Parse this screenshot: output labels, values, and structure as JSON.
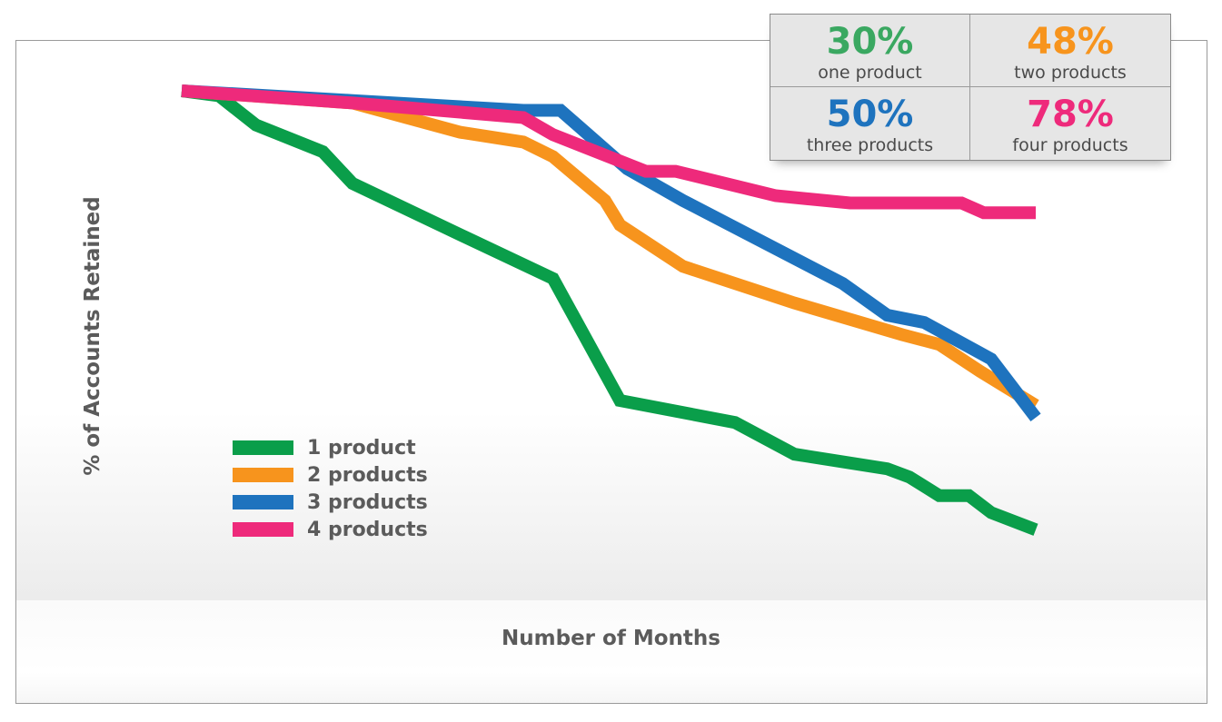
{
  "chart_data": {
    "type": "line",
    "title": "",
    "xlabel": "Number of Months",
    "ylabel": "% of Accounts Retained",
    "grid": false,
    "legend_position": "bottom-left",
    "xlim": [
      0,
      23
    ],
    "ylim": [
      0,
      100
    ],
    "series": [
      {
        "name": "1 product",
        "color": "#0a9e4a",
        "x": [
          0,
          1,
          2,
          3.8,
          4.6,
          7.5,
          10,
          11.8,
          14.9,
          16.5,
          19,
          19.6,
          20.4,
          21.2,
          21.8,
          23
        ],
        "y": [
          100,
          99,
          93,
          87.5,
          81,
          70.5,
          61.5,
          36.5,
          32,
          25.5,
          22.5,
          20.8,
          17,
          17,
          13.5,
          10
        ]
      },
      {
        "name": "2 products",
        "color": "#f7941d",
        "x": [
          0,
          4.6,
          7.5,
          9.2,
          10,
          11.4,
          11.8,
          13.5,
          16.5,
          19.4,
          20.4,
          21.5,
          23
        ],
        "y": [
          100,
          97.5,
          91.5,
          89.5,
          86.5,
          77.5,
          72.5,
          64,
          56.5,
          50,
          48,
          42.5,
          35.5
        ]
      },
      {
        "name": "3 products",
        "color": "#1e73be",
        "x": [
          0,
          4.6,
          9.2,
          10.2,
          12,
          13.5,
          17.8,
          19,
          20,
          21.8,
          23
        ],
        "y": [
          100,
          98,
          96,
          96,
          84,
          77.5,
          60.5,
          54,
          52.5,
          45,
          33
        ]
      },
      {
        "name": "4 products",
        "color": "#ee2a7b",
        "x": [
          0,
          4.6,
          9.2,
          10,
          12.5,
          13.3,
          16,
          18,
          21,
          21.6,
          23
        ],
        "y": [
          100,
          97.5,
          94.5,
          91,
          83.5,
          83.5,
          78.5,
          77,
          77,
          75,
          75
        ]
      }
    ]
  },
  "stats": [
    {
      "value": "30%",
      "label": "one product",
      "color": "#3aa861"
    },
    {
      "value": "48%",
      "label": "two products",
      "color": "#f7941d"
    },
    {
      "value": "50%",
      "label": "three products",
      "color": "#1e73be"
    },
    {
      "value": "78%",
      "label": "four products",
      "color": "#ee2a7b"
    }
  ]
}
